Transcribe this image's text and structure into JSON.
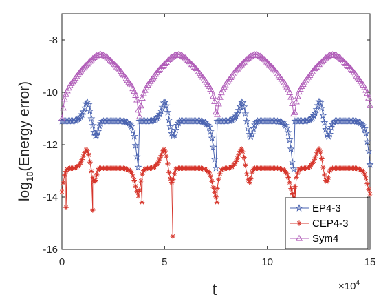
{
  "chart_data": {
    "type": "line",
    "xlabel": "t",
    "ylabel": "log",
    "ylabel_subscript": "10",
    "ylabel_rest": "(Energy error)",
    "x_multiplier": "×10",
    "x_multiplier_exp": "4",
    "xlim": [
      0,
      15
    ],
    "ylim": [
      -16,
      -7
    ],
    "xticks": [
      0,
      5,
      10,
      15
    ],
    "yticks": [
      -16,
      -14,
      -12,
      -10,
      -8
    ],
    "xtick_labels": [
      "0",
      "5",
      "10",
      "15"
    ],
    "ytick_labels": [
      "-16",
      "-14",
      "-12",
      "-10",
      "-8"
    ],
    "grid": false,
    "legend_position": "bottom-right",
    "period": 3.77,
    "series": [
      {
        "name": "EP4-3",
        "color": "#4a63b0",
        "marker": "star",
        "profile": [
          [
            0.0,
            -11.1
          ],
          [
            0.05,
            -11.1
          ],
          [
            0.1,
            -11.1
          ],
          [
            0.15,
            -11.1
          ],
          [
            0.2,
            -11.05
          ],
          [
            0.24,
            -10.95
          ],
          [
            0.27,
            -10.8
          ],
          [
            0.3,
            -10.55
          ],
          [
            0.32,
            -10.35
          ],
          [
            0.34,
            -10.4
          ],
          [
            0.36,
            -10.65
          ],
          [
            0.38,
            -11.0
          ],
          [
            0.4,
            -11.3
          ],
          [
            0.42,
            -11.6
          ],
          [
            0.44,
            -11.7
          ],
          [
            0.46,
            -11.6
          ],
          [
            0.48,
            -11.3
          ],
          [
            0.5,
            -11.2
          ],
          [
            0.52,
            -11.1
          ],
          [
            0.56,
            -11.1
          ],
          [
            0.62,
            -11.1
          ],
          [
            0.7,
            -11.1
          ],
          [
            0.78,
            -11.1
          ],
          [
            0.85,
            -11.15
          ],
          [
            0.9,
            -11.3
          ],
          [
            0.93,
            -11.6
          ],
          [
            0.96,
            -12.2
          ],
          [
            0.98,
            -12.8
          ],
          [
            1.0,
            -13.0
          ]
        ]
      },
      {
        "name": "CEP4-3",
        "color": "#d6352b",
        "marker": "asterisk",
        "profile": [
          [
            0.0,
            -13.8
          ],
          [
            0.03,
            -13.2
          ],
          [
            0.06,
            -12.95
          ],
          [
            0.1,
            -12.9
          ],
          [
            0.15,
            -12.9
          ],
          [
            0.2,
            -12.85
          ],
          [
            0.24,
            -12.7
          ],
          [
            0.27,
            -12.5
          ],
          [
            0.3,
            -12.25
          ],
          [
            0.32,
            -12.15
          ],
          [
            0.34,
            -12.3
          ],
          [
            0.36,
            -12.6
          ],
          [
            0.38,
            -13.0
          ],
          [
            0.4,
            -13.3
          ],
          [
            0.42,
            -13.45
          ],
          [
            0.44,
            -13.3
          ],
          [
            0.46,
            -13.0
          ],
          [
            0.48,
            -12.9
          ],
          [
            0.52,
            -12.9
          ],
          [
            0.6,
            -12.9
          ],
          [
            0.7,
            -12.9
          ],
          [
            0.8,
            -12.9
          ],
          [
            0.86,
            -12.95
          ],
          [
            0.9,
            -13.05
          ],
          [
            0.93,
            -13.3
          ],
          [
            0.96,
            -13.7
          ],
          [
            1.0,
            -14.1
          ]
        ],
        "extra_points": [
          [
            0.2,
            -14.4
          ],
          [
            1.5,
            -14.5
          ],
          [
            3.9,
            -14.2
          ],
          [
            5.4,
            -15.5
          ],
          [
            7.55,
            -14.2
          ],
          [
            11.35,
            -14.1
          ]
        ]
      },
      {
        "name": "Sym4",
        "color": "#b05cb8",
        "marker": "triangle",
        "profile": [
          [
            0.0,
            -11.0
          ],
          [
            0.03,
            -10.3
          ],
          [
            0.06,
            -10.0
          ],
          [
            0.1,
            -9.75
          ],
          [
            0.15,
            -9.55
          ],
          [
            0.2,
            -9.35
          ],
          [
            0.25,
            -9.15
          ],
          [
            0.3,
            -9.0
          ],
          [
            0.35,
            -8.85
          ],
          [
            0.4,
            -8.7
          ],
          [
            0.45,
            -8.6
          ],
          [
            0.5,
            -8.55
          ],
          [
            0.55,
            -8.6
          ],
          [
            0.6,
            -8.7
          ],
          [
            0.65,
            -8.85
          ],
          [
            0.7,
            -9.0
          ],
          [
            0.75,
            -9.15
          ],
          [
            0.8,
            -9.35
          ],
          [
            0.85,
            -9.55
          ],
          [
            0.9,
            -9.75
          ],
          [
            0.94,
            -10.0
          ],
          [
            0.97,
            -10.3
          ],
          [
            1.0,
            -11.0
          ]
        ]
      }
    ]
  }
}
